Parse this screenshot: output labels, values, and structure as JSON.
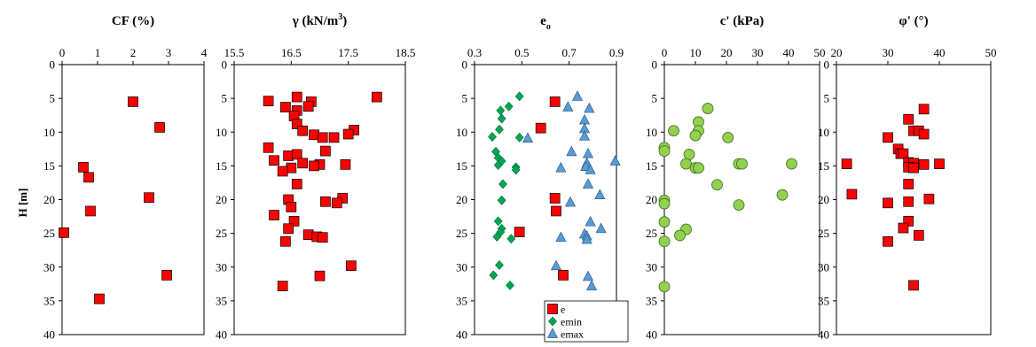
{
  "figure": {
    "ylabel": "H [m]",
    "y_ticks": [
      0,
      5,
      10,
      15,
      20,
      25,
      30,
      35,
      40
    ],
    "ylim": [
      0,
      40
    ],
    "y_inverted": true
  },
  "chart_data": [
    {
      "type": "scatter",
      "title": "CF (%)",
      "xlim": [
        0,
        4
      ],
      "x_ticks": [
        "0",
        "1",
        "2",
        "3",
        "4"
      ],
      "series": [
        {
          "marker": "square",
          "color": "#ff0000",
          "points": [
            [
              2.0,
              5.5
            ],
            [
              2.75,
              9.3
            ],
            [
              0.6,
              15.2
            ],
            [
              0.75,
              16.7
            ],
            [
              2.45,
              19.7
            ],
            [
              0.8,
              21.7
            ],
            [
              0.05,
              24.9
            ],
            [
              2.95,
              31.2
            ],
            [
              1.05,
              34.7
            ]
          ]
        }
      ]
    },
    {
      "type": "scatter",
      "title": "γ (kN/m",
      "title_sup": "3",
      "title_end": ")",
      "xlim": [
        15.5,
        18.5
      ],
      "x_ticks": [
        "15.5",
        "16.5",
        "17.5",
        "18.5"
      ],
      "series": [
        {
          "marker": "square",
          "color": "#ff0000",
          "points": [
            [
              18.0,
              4.8
            ],
            [
              16.6,
              4.8
            ],
            [
              16.1,
              5.4
            ],
            [
              16.85,
              5.5
            ],
            [
              16.4,
              6.3
            ],
            [
              16.8,
              6.2
            ],
            [
              16.6,
              6.8
            ],
            [
              16.55,
              7.6
            ],
            [
              16.6,
              8.8
            ],
            [
              16.7,
              9.8
            ],
            [
              17.6,
              9.7
            ],
            [
              17.5,
              10.3
            ],
            [
              16.9,
              10.4
            ],
            [
              17.05,
              10.8
            ],
            [
              17.25,
              10.8
            ],
            [
              17.1,
              12.8
            ],
            [
              16.1,
              12.3
            ],
            [
              16.45,
              13.5
            ],
            [
              16.6,
              13.3
            ],
            [
              16.2,
              14.2
            ],
            [
              16.7,
              14.6
            ],
            [
              17.0,
              14.8
            ],
            [
              17.45,
              14.8
            ],
            [
              16.9,
              15.0
            ],
            [
              16.5,
              15.3
            ],
            [
              16.35,
              15.8
            ],
            [
              16.6,
              17.7
            ],
            [
              17.4,
              19.8
            ],
            [
              17.1,
              20.3
            ],
            [
              17.3,
              20.5
            ],
            [
              16.45,
              20.0
            ],
            [
              16.5,
              21.1
            ],
            [
              16.2,
              22.3
            ],
            [
              16.55,
              23.2
            ],
            [
              16.45,
              24.3
            ],
            [
              16.4,
              26.2
            ],
            [
              16.8,
              25.2
            ],
            [
              16.95,
              25.5
            ],
            [
              17.05,
              25.6
            ],
            [
              17.55,
              29.8
            ],
            [
              17.0,
              31.3
            ],
            [
              16.35,
              32.8
            ]
          ]
        }
      ]
    },
    {
      "type": "scatter",
      "title": "e",
      "title_sub": "o",
      "xlim": [
        0.3,
        0.9
      ],
      "x_ticks": [
        "0.3",
        "0.5",
        "0.7",
        "0.9"
      ],
      "legend": {
        "position": "bottom-right",
        "entries": [
          "e",
          "emin",
          "emax"
        ]
      },
      "series": [
        {
          "name": "e",
          "marker": "square",
          "color": "#ff0000",
          "points": [
            [
              0.64,
              5.5
            ],
            [
              0.58,
              9.4
            ],
            [
              0.64,
              19.8
            ],
            [
              0.645,
              21.7
            ],
            [
              0.49,
              24.8
            ],
            [
              0.675,
              31.2
            ]
          ]
        },
        {
          "name": "emin",
          "marker": "diamond",
          "color": "#00a651",
          "points": [
            [
              0.49,
              4.7
            ],
            [
              0.445,
              6.2
            ],
            [
              0.41,
              6.8
            ],
            [
              0.415,
              8.0
            ],
            [
              0.405,
              9.6
            ],
            [
              0.375,
              10.7
            ],
            [
              0.49,
              10.8
            ],
            [
              0.39,
              12.9
            ],
            [
              0.4,
              13.8
            ],
            [
              0.415,
              14.3
            ],
            [
              0.4,
              14.9
            ],
            [
              0.475,
              15.2
            ],
            [
              0.475,
              15.6
            ],
            [
              0.42,
              17.7
            ],
            [
              0.415,
              20.1
            ],
            [
              0.4,
              23.2
            ],
            [
              0.415,
              24.3
            ],
            [
              0.41,
              24.8
            ],
            [
              0.395,
              25.5
            ],
            [
              0.455,
              25.8
            ],
            [
              0.405,
              29.7
            ],
            [
              0.38,
              31.2
            ],
            [
              0.45,
              32.7
            ]
          ]
        },
        {
          "name": "emax",
          "marker": "triangle",
          "color": "#5b9bd5",
          "points": [
            [
              0.735,
              4.7
            ],
            [
              0.785,
              6.5
            ],
            [
              0.695,
              6.3
            ],
            [
              0.765,
              8.2
            ],
            [
              0.765,
              9.5
            ],
            [
              0.765,
              10.6
            ],
            [
              0.525,
              10.9
            ],
            [
              0.71,
              12.9
            ],
            [
              0.78,
              13.2
            ],
            [
              0.895,
              14.3
            ],
            [
              0.775,
              14.6
            ],
            [
              0.77,
              15.1
            ],
            [
              0.79,
              15.6
            ],
            [
              0.665,
              15.3
            ],
            [
              0.78,
              17.7
            ],
            [
              0.83,
              19.3
            ],
            [
              0.705,
              20.4
            ],
            [
              0.79,
              23.3
            ],
            [
              0.835,
              24.3
            ],
            [
              0.765,
              25.1
            ],
            [
              0.775,
              25.4
            ],
            [
              0.665,
              25.6
            ],
            [
              0.775,
              25.9
            ],
            [
              0.645,
              29.8
            ],
            [
              0.78,
              31.4
            ],
            [
              0.795,
              32.8
            ]
          ]
        }
      ]
    },
    {
      "type": "scatter",
      "title": "c' (kPa)",
      "xlim": [
        0,
        50
      ],
      "x_ticks": [
        "0",
        "10",
        "20",
        "30",
        "40",
        "50"
      ],
      "series": [
        {
          "marker": "circle",
          "color": "#92d050",
          "points": [
            [
              14,
              6.5
            ],
            [
              11,
              8.5
            ],
            [
              3,
              9.8
            ],
            [
              11,
              9.8
            ],
            [
              10,
              10.5
            ],
            [
              20.5,
              10.8
            ],
            [
              0,
              12.3
            ],
            [
              0,
              12.8
            ],
            [
              8,
              13.3
            ],
            [
              7,
              14.7
            ],
            [
              10,
              15.3
            ],
            [
              11,
              15.3
            ],
            [
              24,
              14.7
            ],
            [
              25,
              14.7
            ],
            [
              41,
              14.7
            ],
            [
              17,
              17.8
            ],
            [
              38,
              19.3
            ],
            [
              0,
              20.1
            ],
            [
              0,
              20.6
            ],
            [
              24,
              20.8
            ],
            [
              0,
              23.3
            ],
            [
              7,
              24.4
            ],
            [
              5,
              25.3
            ],
            [
              0,
              26.2
            ],
            [
              0,
              32.9
            ]
          ]
        }
      ]
    },
    {
      "type": "scatter",
      "title": "φ' (°)",
      "xlim": [
        20,
        50
      ],
      "x_ticks": [
        "20",
        "30",
        "40",
        "50"
      ],
      "series": [
        {
          "marker": "square",
          "color": "#ff0000",
          "points": [
            [
              37,
              6.6
            ],
            [
              34,
              8.1
            ],
            [
              35,
              9.8
            ],
            [
              36,
              9.8
            ],
            [
              37,
              10.3
            ],
            [
              30,
              10.8
            ],
            [
              32,
              12.5
            ],
            [
              32.5,
              13.2
            ],
            [
              33,
              13.2
            ],
            [
              22,
              14.7
            ],
            [
              34,
              14.5
            ],
            [
              35,
              14.6
            ],
            [
              34,
              15.2
            ],
            [
              35,
              15.3
            ],
            [
              37,
              14.8
            ],
            [
              40,
              14.7
            ],
            [
              34,
              17.7
            ],
            [
              23,
              19.2
            ],
            [
              38,
              19.9
            ],
            [
              30,
              20.5
            ],
            [
              34,
              20.3
            ],
            [
              34,
              23.2
            ],
            [
              33,
              24.2
            ],
            [
              36,
              25.3
            ],
            [
              30,
              26.2
            ],
            [
              35,
              32.7
            ]
          ]
        }
      ]
    }
  ]
}
